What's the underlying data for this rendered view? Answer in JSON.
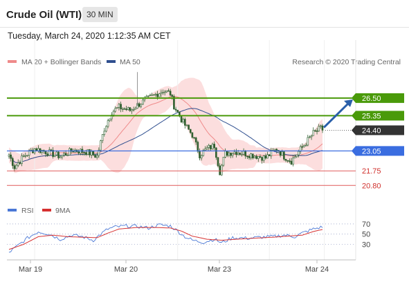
{
  "header": {
    "title": "Crude Oil (WTI)",
    "timeframe": "30 MIN"
  },
  "datetime": "Tuesday, March 24, 2020 1:12:35 AM CET",
  "legend": {
    "ma20_label": "MA 20 + Bollinger Bands",
    "ma50_label": "MA 50",
    "credit": "Research © 2020 Trading Central"
  },
  "colors": {
    "ma20": "#ef8a8a",
    "ma50": "#2f4f8f",
    "band": "#fbd3d3",
    "resistance": "#4a9a0a",
    "support_line": "#3a6de0",
    "support_red": "#e05a5a",
    "last_price": "#333333",
    "arrow": "#2a5faa",
    "candle": "#2f5f2f",
    "rsi": "#4a78d6",
    "rsi_ma": "#d63030"
  },
  "chart_data": [
    {
      "type": "candlestick",
      "title": "",
      "instrument": "Crude Oil (WTI)",
      "interval": "30 MIN",
      "x_ticks": [
        "Mar 19",
        "Mar 20",
        "Mar 23",
        "Mar 24"
      ],
      "ylim": [
        20.0,
        28.3
      ],
      "levels": [
        {
          "value": 26.5,
          "label": "26.50",
          "kind": "resistance"
        },
        {
          "value": 25.35,
          "label": "25.35",
          "kind": "resistance"
        },
        {
          "value": 24.4,
          "label": "24.40",
          "kind": "last"
        },
        {
          "value": 23.05,
          "label": "23.05",
          "kind": "pivot"
        },
        {
          "value": 21.75,
          "label": "21.75",
          "kind": "support"
        },
        {
          "value": 20.8,
          "label": "20.80",
          "kind": "support"
        }
      ],
      "series": [
        {
          "name": "MA 20 + Bollinger Bands"
        },
        {
          "name": "MA 50"
        }
      ],
      "path_closes": [
        [
          0,
          22.8
        ],
        [
          3,
          22.0
        ],
        [
          8,
          22.7
        ],
        [
          14,
          23.2
        ],
        [
          20,
          23.0
        ],
        [
          28,
          22.7
        ],
        [
          35,
          23.1
        ],
        [
          42,
          23.0
        ],
        [
          48,
          22.7
        ],
        [
          52,
          24.5
        ],
        [
          56,
          25.6
        ],
        [
          60,
          25.9
        ],
        [
          66,
          25.7
        ],
        [
          72,
          26.2
        ],
        [
          78,
          26.6
        ],
        [
          84,
          27.0
        ],
        [
          88,
          26.8
        ],
        [
          90,
          26.0
        ],
        [
          95,
          24.9
        ],
        [
          100,
          24.1
        ],
        [
          104,
          22.8
        ],
        [
          108,
          23.2
        ],
        [
          112,
          23.4
        ],
        [
          115,
          21.7
        ],
        [
          118,
          22.9
        ],
        [
          124,
          23.0
        ],
        [
          132,
          22.8
        ],
        [
          140,
          22.6
        ],
        [
          146,
          23.2
        ],
        [
          150,
          22.7
        ],
        [
          154,
          22.4
        ],
        [
          160,
          23.3
        ],
        [
          166,
          24.2
        ],
        [
          171,
          24.6
        ]
      ],
      "last_price": 24.4,
      "projection": {
        "from": 24.4,
        "to": 26.5
      }
    },
    {
      "type": "line",
      "title": "",
      "series": [
        {
          "name": "RSI"
        },
        {
          "name": "9MA"
        }
      ],
      "ylim": [
        5,
        78
      ],
      "y_ticks": [
        70,
        50,
        30
      ],
      "rsi_path": [
        [
          0,
          14
        ],
        [
          4,
          25
        ],
        [
          10,
          42
        ],
        [
          16,
          55
        ],
        [
          22,
          50
        ],
        [
          28,
          40
        ],
        [
          34,
          48
        ],
        [
          40,
          45
        ],
        [
          46,
          38
        ],
        [
          50,
          50
        ],
        [
          54,
          60
        ],
        [
          58,
          64
        ],
        [
          64,
          66
        ],
        [
          70,
          65
        ],
        [
          76,
          62
        ],
        [
          82,
          68
        ],
        [
          88,
          66
        ],
        [
          92,
          56
        ],
        [
          96,
          45
        ],
        [
          100,
          38
        ],
        [
          106,
          34
        ],
        [
          112,
          40
        ],
        [
          116,
          33
        ],
        [
          122,
          43
        ],
        [
          130,
          42
        ],
        [
          138,
          44
        ],
        [
          144,
          45
        ],
        [
          150,
          48
        ],
        [
          156,
          45
        ],
        [
          160,
          52
        ],
        [
          166,
          60
        ],
        [
          171,
          64
        ]
      ],
      "rsi_ma_path": [
        [
          0,
          20
        ],
        [
          8,
          30
        ],
        [
          16,
          45
        ],
        [
          24,
          48
        ],
        [
          32,
          45
        ],
        [
          40,
          44
        ],
        [
          48,
          43
        ],
        [
          54,
          52
        ],
        [
          60,
          60
        ],
        [
          70,
          63
        ],
        [
          80,
          63
        ],
        [
          88,
          62
        ],
        [
          94,
          56
        ],
        [
          100,
          46
        ],
        [
          108,
          40
        ],
        [
          116,
          38
        ],
        [
          124,
          40
        ],
        [
          134,
          42
        ],
        [
          144,
          44
        ],
        [
          152,
          46
        ],
        [
          160,
          48
        ],
        [
          166,
          55
        ],
        [
          171,
          59
        ]
      ]
    }
  ]
}
